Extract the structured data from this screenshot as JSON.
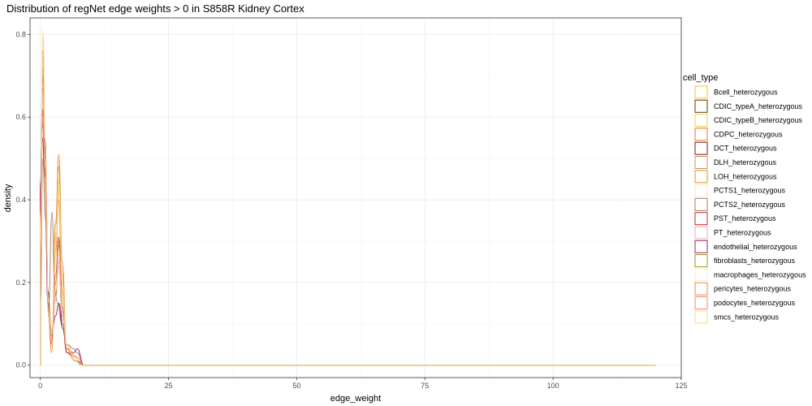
{
  "chart_data": {
    "type": "area",
    "title": "Distribution of regNet edge weights > 0 in S858R Kidney Cortex",
    "xlabel": "edge_weight",
    "ylabel": "density",
    "xlim": [
      -2,
      125
    ],
    "ylim": [
      -0.03,
      0.84
    ],
    "x_ticks": [
      0,
      25,
      50,
      75,
      100,
      125
    ],
    "y_ticks": [
      0.0,
      0.2,
      0.4,
      0.6,
      0.8
    ],
    "x_tick_labels": [
      "0",
      "25",
      "50",
      "75",
      "100",
      "125"
    ],
    "y_tick_labels": [
      "0.0",
      "0.2",
      "0.4",
      "0.6",
      "0.8"
    ],
    "grid": true,
    "legend_position": "right",
    "legend_title": "cell_type",
    "x_max": 120,
    "series": [
      {
        "name": "Bcell_heterozygous",
        "color": "#f5c23a",
        "fill": "#ffffff",
        "points": [
          [
            0,
            0.3
          ],
          [
            0.5,
            0.79
          ],
          [
            1,
            0.45
          ],
          [
            1.6,
            0.12
          ],
          [
            2.3,
            0.08
          ],
          [
            3,
            0.26
          ],
          [
            3.5,
            0.43
          ],
          [
            4.2,
            0.18
          ],
          [
            5,
            0.04
          ],
          [
            6.5,
            0.02
          ],
          [
            8,
            0.0
          ],
          [
            120,
            0.0
          ]
        ]
      },
      {
        "name": "CDIC_typeA_heterozygous",
        "color": "#5c3b12",
        "fill": "#ffffff",
        "points": [
          [
            0,
            0.4
          ],
          [
            0.4,
            0.58
          ],
          [
            0.9,
            0.55
          ],
          [
            1.5,
            0.18
          ],
          [
            2.2,
            0.06
          ],
          [
            3,
            0.2
          ],
          [
            3.6,
            0.29
          ],
          [
            4.3,
            0.12
          ],
          [
            5.2,
            0.03
          ],
          [
            7,
            0.01
          ],
          [
            8.5,
            0.0
          ],
          [
            120,
            0.0
          ]
        ]
      },
      {
        "name": "CDIC_typeB_heterozygous",
        "color": "#f0d040",
        "fill": "#ffffff",
        "points": [
          [
            0,
            0.35
          ],
          [
            0.5,
            0.74
          ],
          [
            1,
            0.5
          ],
          [
            1.6,
            0.14
          ],
          [
            2.3,
            0.05
          ],
          [
            3.1,
            0.32
          ],
          [
            3.6,
            0.45
          ],
          [
            4.3,
            0.2
          ],
          [
            5.1,
            0.04
          ],
          [
            6.8,
            0.01
          ],
          [
            8.2,
            0.0
          ],
          [
            120,
            0.0
          ]
        ]
      },
      {
        "name": "CDPC_heterozygous",
        "color": "#e87d1e",
        "fill": "#ffffff",
        "points": [
          [
            0,
            0.38
          ],
          [
            0.5,
            0.76
          ],
          [
            1,
            0.5
          ],
          [
            1.6,
            0.12
          ],
          [
            2.2,
            0.03
          ],
          [
            3,
            0.35
          ],
          [
            3.6,
            0.51
          ],
          [
            4.3,
            0.25
          ],
          [
            5.1,
            0.05
          ],
          [
            6.8,
            0.01
          ],
          [
            8.3,
            0.0
          ],
          [
            120,
            0.0
          ]
        ]
      },
      {
        "name": "DCT_heterozygous",
        "color": "#7a1a1a",
        "fill": "#ffffff",
        "points": [
          [
            0,
            0.42
          ],
          [
            0.4,
            0.62
          ],
          [
            0.9,
            0.48
          ],
          [
            1.5,
            0.15
          ],
          [
            2.2,
            0.06
          ],
          [
            3,
            0.18
          ],
          [
            3.6,
            0.26
          ],
          [
            4.3,
            0.1
          ],
          [
            5.2,
            0.03
          ],
          [
            7,
            0.01
          ],
          [
            8.5,
            0.0
          ],
          [
            120,
            0.0
          ]
        ]
      },
      {
        "name": "DLH_heterozygous",
        "color": "#c89460",
        "fill": "#ffffff",
        "points": [
          [
            0,
            0.32
          ],
          [
            0.5,
            0.7
          ],
          [
            1,
            0.46
          ],
          [
            1.6,
            0.14
          ],
          [
            2.3,
            0.06
          ],
          [
            3,
            0.2
          ],
          [
            3.6,
            0.3
          ],
          [
            4.3,
            0.14
          ],
          [
            5.2,
            0.04
          ],
          [
            7,
            0.02
          ],
          [
            8.5,
            0.0
          ],
          [
            120,
            0.0
          ]
        ]
      },
      {
        "name": "LOH_heterozygous",
        "color": "#d9962a",
        "fill": "#ffffff",
        "points": [
          [
            0,
            0.36
          ],
          [
            0.5,
            0.72
          ],
          [
            1,
            0.49
          ],
          [
            1.6,
            0.13
          ],
          [
            2.3,
            0.05
          ],
          [
            3,
            0.34
          ],
          [
            3.6,
            0.48
          ],
          [
            4.3,
            0.22
          ],
          [
            5.1,
            0.05
          ],
          [
            6.8,
            0.01
          ],
          [
            8.3,
            0.0
          ],
          [
            120,
            0.0
          ]
        ]
      },
      {
        "name": "PCTS1_heterozygous",
        "color": "#f6e6c8",
        "fill": "#ffffff",
        "points": [
          [
            0,
            0.3
          ],
          [
            0.5,
            0.66
          ],
          [
            1,
            0.44
          ],
          [
            1.6,
            0.13
          ],
          [
            2.3,
            0.06
          ],
          [
            3,
            0.18
          ],
          [
            3.6,
            0.27
          ],
          [
            4.3,
            0.12
          ],
          [
            5.2,
            0.04
          ],
          [
            7,
            0.02
          ],
          [
            8.5,
            0.0
          ],
          [
            120,
            0.0
          ]
        ]
      },
      {
        "name": "PCTS2_heterozygous",
        "color": "#a0806a",
        "fill": "#ffffff",
        "points": [
          [
            0,
            0.14
          ],
          [
            0.5,
            0.5
          ],
          [
            1,
            0.35
          ],
          [
            1.6,
            0.14
          ],
          [
            2.3,
            0.37
          ],
          [
            2.8,
            0.18
          ],
          [
            3.4,
            0.15
          ],
          [
            4.2,
            0.1
          ],
          [
            5.2,
            0.05
          ],
          [
            6.5,
            0.04
          ],
          [
            7.2,
            0.03
          ],
          [
            8.5,
            0.0
          ],
          [
            120,
            0.0
          ]
        ]
      },
      {
        "name": "PST_heterozygous",
        "color": "#c8282a",
        "fill": "#ffffff",
        "points": [
          [
            0,
            0.44
          ],
          [
            0.4,
            0.61
          ],
          [
            0.9,
            0.47
          ],
          [
            1.5,
            0.14
          ],
          [
            2.2,
            0.05
          ],
          [
            3,
            0.22
          ],
          [
            3.6,
            0.31
          ],
          [
            4.3,
            0.13
          ],
          [
            5.2,
            0.03
          ],
          [
            7,
            0.01
          ],
          [
            8.5,
            0.0
          ],
          [
            120,
            0.0
          ]
        ]
      },
      {
        "name": "PT_heterozygous",
        "color": "#d8b0b8",
        "fill": "#ffffff",
        "points": [
          [
            0,
            0.3
          ],
          [
            0.5,
            0.6
          ],
          [
            1,
            0.42
          ],
          [
            1.6,
            0.14
          ],
          [
            2.3,
            0.07
          ],
          [
            3,
            0.16
          ],
          [
            3.6,
            0.24
          ],
          [
            4.3,
            0.12
          ],
          [
            5.2,
            0.04
          ],
          [
            7,
            0.02
          ],
          [
            8.5,
            0.0
          ],
          [
            120,
            0.0
          ]
        ]
      },
      {
        "name": "endothelial_heterozygous",
        "color": "#a02060",
        "fill": "#ffffff",
        "points": [
          [
            0,
            0.43
          ],
          [
            0.4,
            0.55
          ],
          [
            0.9,
            0.45
          ],
          [
            1.5,
            0.15
          ],
          [
            2.2,
            0.07
          ],
          [
            3,
            0.12
          ],
          [
            3.6,
            0.15
          ],
          [
            4.3,
            0.09
          ],
          [
            5.2,
            0.04
          ],
          [
            6.5,
            0.03
          ],
          [
            7.2,
            0.04
          ],
          [
            8.5,
            0.0
          ],
          [
            120,
            0.0
          ]
        ]
      },
      {
        "name": "fibroblasts_heterozygous",
        "color": "#9a9a20",
        "fill": "#ffffff",
        "points": [
          [
            0,
            0.34
          ],
          [
            0.5,
            0.62
          ],
          [
            1,
            0.44
          ],
          [
            1.6,
            0.15
          ],
          [
            2.3,
            0.07
          ],
          [
            3,
            0.17
          ],
          [
            3.6,
            0.25
          ],
          [
            4.3,
            0.12
          ],
          [
            5.2,
            0.04
          ],
          [
            7,
            0.02
          ],
          [
            8.5,
            0.0
          ],
          [
            120,
            0.0
          ]
        ]
      },
      {
        "name": "macrophages_heterozygous",
        "color": "#f5ecd8",
        "fill": "#ffffff",
        "points": [
          [
            0,
            0.28
          ],
          [
            0.5,
            0.64
          ],
          [
            1,
            0.43
          ],
          [
            1.6,
            0.13
          ],
          [
            2.3,
            0.06
          ],
          [
            3,
            0.18
          ],
          [
            3.6,
            0.26
          ],
          [
            4.3,
            0.12
          ],
          [
            5.2,
            0.04
          ],
          [
            7,
            0.02
          ],
          [
            8.5,
            0.0
          ],
          [
            120,
            0.0
          ]
        ]
      },
      {
        "name": "pericytes_heterozygous",
        "color": "#f08a40",
        "fill": "#ffffff",
        "points": [
          [
            0,
            0.37
          ],
          [
            0.5,
            0.69
          ],
          [
            1,
            0.47
          ],
          [
            1.6,
            0.13
          ],
          [
            2.3,
            0.05
          ],
          [
            3,
            0.28
          ],
          [
            3.6,
            0.4
          ],
          [
            4.3,
            0.18
          ],
          [
            5.1,
            0.04
          ],
          [
            6.8,
            0.01
          ],
          [
            8.3,
            0.0
          ],
          [
            120,
            0.0
          ]
        ]
      },
      {
        "name": "podocytes_heterozygous",
        "color": "#f08878",
        "fill": "#ffffff",
        "points": [
          [
            0,
            0.33
          ],
          [
            0.5,
            0.67
          ],
          [
            1,
            0.45
          ],
          [
            1.6,
            0.14
          ],
          [
            2.3,
            0.06
          ],
          [
            3,
            0.2
          ],
          [
            3.6,
            0.29
          ],
          [
            4.3,
            0.13
          ],
          [
            5.2,
            0.04
          ],
          [
            7,
            0.02
          ],
          [
            8.5,
            0.0
          ],
          [
            120,
            0.0
          ]
        ]
      },
      {
        "name": "smcs_heterozygous",
        "color": "#f8d890",
        "fill": "#ffffff",
        "points": [
          [
            0,
            0.36
          ],
          [
            0.5,
            0.81
          ],
          [
            1,
            0.52
          ],
          [
            1.6,
            0.13
          ],
          [
            2.3,
            0.05
          ],
          [
            3,
            0.3
          ],
          [
            3.6,
            0.44
          ],
          [
            4.3,
            0.2
          ],
          [
            5.1,
            0.05
          ],
          [
            6.8,
            0.01
          ],
          [
            8.3,
            0.0
          ],
          [
            120,
            0.0
          ]
        ]
      }
    ]
  }
}
